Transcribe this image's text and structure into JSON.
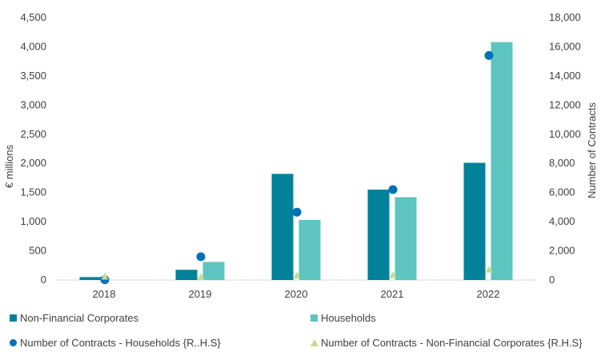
{
  "chart_data": {
    "type": "bar",
    "categories": [
      "2018",
      "2019",
      "2020",
      "2021",
      "2022"
    ],
    "ylabel": "€ millions",
    "ylabel_right": "Number of Contracts",
    "ylim": [
      0,
      4500
    ],
    "ylim_right": [
      0,
      18000
    ],
    "yticks": [
      "0",
      "500",
      "1,000",
      "1,500",
      "2,000",
      "2,500",
      "3,000",
      "3,500",
      "4,000",
      "4,500"
    ],
    "yticks_right": [
      "0",
      "2,000",
      "4,000",
      "6,000",
      "8,000",
      "10,000",
      "12,000",
      "14,000",
      "16,000",
      "18,000"
    ],
    "series": [
      {
        "name": "Non-Financial Corporates",
        "kind": "bar",
        "axis": "left",
        "color": "#00829b",
        "values": [
          50,
          175,
          1820,
          1550,
          2010
        ]
      },
      {
        "name": "Households",
        "kind": "bar",
        "axis": "left",
        "color": "#5ec4c0",
        "values": [
          0,
          310,
          1030,
          1420,
          4080
        ]
      },
      {
        "name": "Number of Contracts - Households {R..H.S}",
        "kind": "scatter",
        "marker": "circle",
        "axis": "right",
        "color": "#0070b8",
        "values": [
          20,
          1600,
          4650,
          6200,
          15400
        ]
      },
      {
        "name": "Number of Contracts  - Non-Financial Corporates {R.H.S}",
        "kind": "scatter",
        "marker": "triangle",
        "axis": "right",
        "color": "#c6dd8e",
        "values": [
          0,
          120,
          300,
          330,
          700
        ]
      }
    ],
    "legend_position": "bottom"
  }
}
